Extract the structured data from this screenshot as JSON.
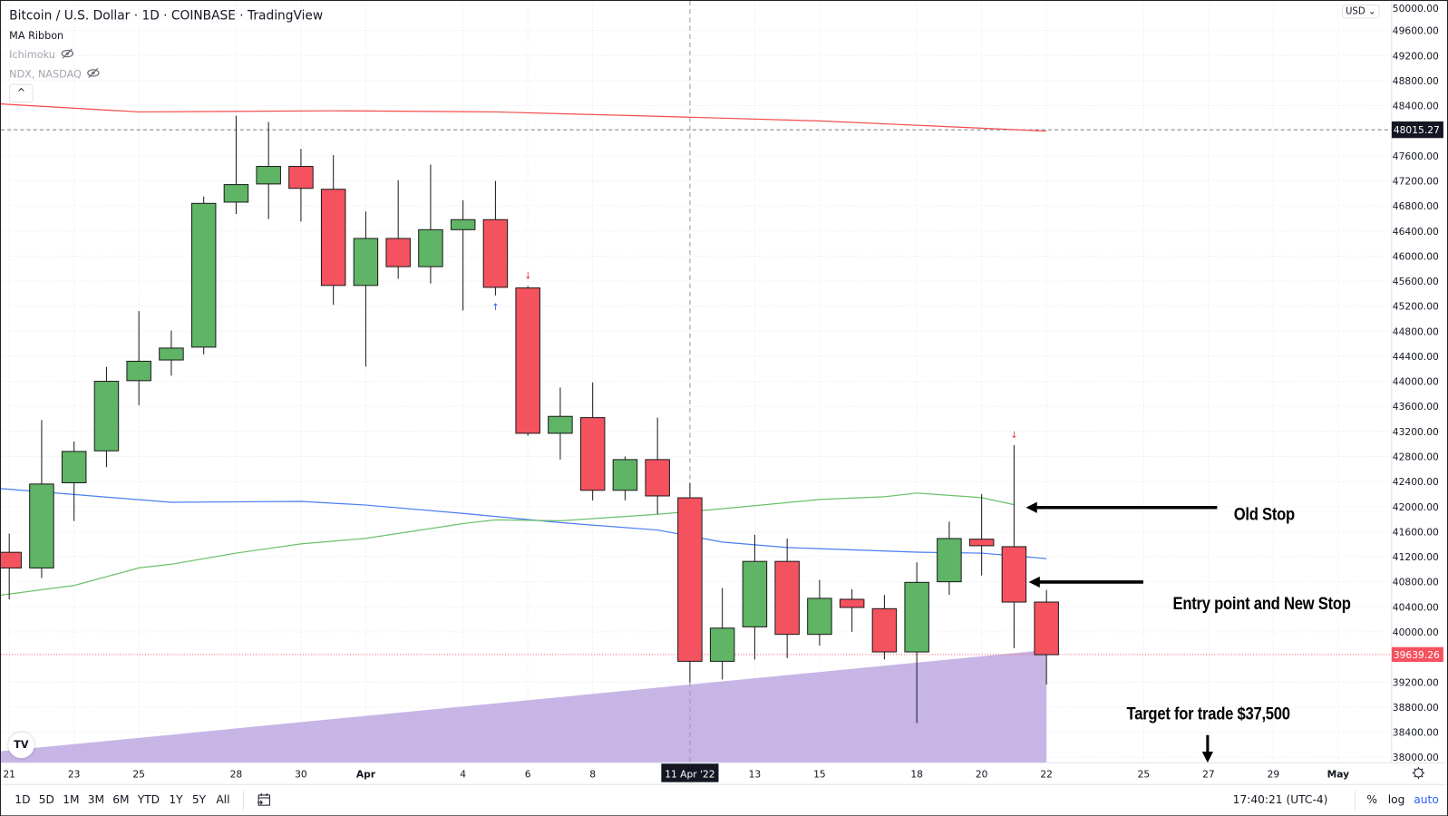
{
  "legend": {
    "title": "Bitcoin / U.S. Dollar · 1D · COINBASE · TradingView",
    "indicators": [
      "MA Ribbon",
      "Ichimoku",
      "NDX, NASDAQ"
    ]
  },
  "currency_selector": "USD ⌄",
  "toolbar": {
    "ranges": [
      "1D",
      "5D",
      "1M",
      "3M",
      "6M",
      "YTD",
      "1Y",
      "5Y",
      "All"
    ],
    "clock": "17:40:21 (UTC-4)",
    "percent": "%",
    "log": "log",
    "auto": "auto"
  },
  "colors": {
    "up": "#5fb466",
    "down": "#f5525f",
    "ma_long": "#f44b4b",
    "ma_mid": "#4a7cf5",
    "ma_short": "#6cc06a",
    "area": "#c7b5e6",
    "accent": "#2962ff"
  },
  "chart_data": {
    "type": "candlestick",
    "title": "Bitcoin / U.S. Dollar · 1D · COINBASE",
    "ylim": [
      38000,
      50000
    ],
    "y_ticks": [
      50000,
      49600,
      49200,
      48800,
      48400,
      47600,
      47200,
      46800,
      46400,
      46000,
      45600,
      45200,
      44800,
      44400,
      44000,
      43600,
      43200,
      42800,
      42400,
      42000,
      41600,
      41200,
      40800,
      40400,
      40000,
      39200,
      38800,
      38400,
      38000
    ],
    "x_ticks": [
      {
        "label": "21",
        "date": "2022-03-21"
      },
      {
        "label": "23",
        "date": "2022-03-23"
      },
      {
        "label": "25",
        "date": "2022-03-25"
      },
      {
        "label": "28",
        "date": "2022-03-28"
      },
      {
        "label": "30",
        "date": "2022-03-30"
      },
      {
        "label": "Apr",
        "date": "2022-04-01",
        "bold": true
      },
      {
        "label": "4",
        "date": "2022-04-04"
      },
      {
        "label": "6",
        "date": "2022-04-06"
      },
      {
        "label": "8",
        "date": "2022-04-08"
      },
      {
        "label": "13",
        "date": "2022-04-13"
      },
      {
        "label": "15",
        "date": "2022-04-15"
      },
      {
        "label": "18",
        "date": "2022-04-18"
      },
      {
        "label": "20",
        "date": "2022-04-20"
      },
      {
        "label": "22",
        "date": "2022-04-22"
      },
      {
        "label": "25",
        "date": "2022-04-25"
      },
      {
        "label": "27",
        "date": "2022-04-27"
      },
      {
        "label": "29",
        "date": "2022-04-29"
      },
      {
        "label": "May",
        "date": "2022-05-01",
        "bold": true
      }
    ],
    "crosshair": {
      "label": "11 Apr '22",
      "date": "2022-04-11"
    },
    "price_lines": [
      {
        "label": "48015.27",
        "value": 48015.27,
        "style": "dashed-gray"
      },
      {
        "label": "39639.26",
        "value": 39639.26,
        "style": "dotted-red"
      }
    ],
    "candles": [
      {
        "date": "2022-03-21",
        "o": 41270,
        "h": 41570,
        "l": 40520,
        "c": 41020
      },
      {
        "date": "2022-03-22",
        "o": 41020,
        "h": 43380,
        "l": 40860,
        "c": 42360
      },
      {
        "date": "2022-03-23",
        "o": 42380,
        "h": 43040,
        "l": 41770,
        "c": 42880
      },
      {
        "date": "2022-03-24",
        "o": 42890,
        "h": 44230,
        "l": 42630,
        "c": 44000
      },
      {
        "date": "2022-03-25",
        "o": 44010,
        "h": 45120,
        "l": 43620,
        "c": 44320
      },
      {
        "date": "2022-03-26",
        "o": 44340,
        "h": 44810,
        "l": 44090,
        "c": 44530
      },
      {
        "date": "2022-03-27",
        "o": 44545,
        "h": 46950,
        "l": 44430,
        "c": 46840
      },
      {
        "date": "2022-03-28",
        "o": 46860,
        "h": 48240,
        "l": 46670,
        "c": 47140
      },
      {
        "date": "2022-03-29",
        "o": 47150,
        "h": 48140,
        "l": 46590,
        "c": 47430
      },
      {
        "date": "2022-03-30",
        "o": 47430,
        "h": 47710,
        "l": 46550,
        "c": 47080
      },
      {
        "date": "2022-03-31",
        "o": 47065,
        "h": 47610,
        "l": 45220,
        "c": 45530
      },
      {
        "date": "2022-04-01",
        "o": 45530,
        "h": 46710,
        "l": 44235,
        "c": 46280
      },
      {
        "date": "2022-04-02",
        "o": 46280,
        "h": 47210,
        "l": 45635,
        "c": 45830
      },
      {
        "date": "2022-04-03",
        "o": 45830,
        "h": 47460,
        "l": 45560,
        "c": 46420
      },
      {
        "date": "2022-04-04",
        "o": 46420,
        "h": 46890,
        "l": 45130,
        "c": 46580
      },
      {
        "date": "2022-04-05",
        "o": 46580,
        "h": 47200,
        "l": 45370,
        "c": 45500
      },
      {
        "date": "2022-04-06",
        "o": 45490,
        "h": 45520,
        "l": 43130,
        "c": 43170
      },
      {
        "date": "2022-04-07",
        "o": 43170,
        "h": 43900,
        "l": 42750,
        "c": 43440
      },
      {
        "date": "2022-04-08",
        "o": 43420,
        "h": 43980,
        "l": 42100,
        "c": 42260
      },
      {
        "date": "2022-04-09",
        "o": 42260,
        "h": 42800,
        "l": 42100,
        "c": 42750
      },
      {
        "date": "2022-04-10",
        "o": 42750,
        "h": 43420,
        "l": 41880,
        "c": 42170
      },
      {
        "date": "2022-04-11",
        "o": 42140,
        "h": 42380,
        "l": 39190,
        "c": 39530
      },
      {
        "date": "2022-04-12",
        "o": 39530,
        "h": 40700,
        "l": 39240,
        "c": 40060
      },
      {
        "date": "2022-04-13",
        "o": 40080,
        "h": 41550,
        "l": 39560,
        "c": 41125
      },
      {
        "date": "2022-04-14",
        "o": 41125,
        "h": 41490,
        "l": 39580,
        "c": 39960
      },
      {
        "date": "2022-04-15",
        "o": 39960,
        "h": 40830,
        "l": 39780,
        "c": 40535
      },
      {
        "date": "2022-04-16",
        "o": 40520,
        "h": 40680,
        "l": 40000,
        "c": 40390
      },
      {
        "date": "2022-04-17",
        "o": 40370,
        "h": 40590,
        "l": 39560,
        "c": 39680
      },
      {
        "date": "2022-04-18",
        "o": 39680,
        "h": 41110,
        "l": 38545,
        "c": 40790
      },
      {
        "date": "2022-04-19",
        "o": 40800,
        "h": 41760,
        "l": 40590,
        "c": 41490
      },
      {
        "date": "2022-04-20",
        "o": 41480,
        "h": 42200,
        "l": 40900,
        "c": 41375
      },
      {
        "date": "2022-04-21",
        "o": 41360,
        "h": 42980,
        "l": 39740,
        "c": 40476
      },
      {
        "date": "2022-04-22",
        "o": 40476,
        "h": 40670,
        "l": 39160,
        "c": 39636
      }
    ],
    "moving_averages": [
      {
        "name": "MA long",
        "color": "#f44b4b",
        "points": [
          [
            "2022-03-20",
            48450
          ],
          [
            "2022-03-25",
            48300
          ],
          [
            "2022-03-31",
            48318
          ],
          [
            "2022-04-05",
            48300
          ],
          [
            "2022-04-10",
            48230
          ],
          [
            "2022-04-15",
            48156
          ],
          [
            "2022-04-22",
            47994
          ]
        ]
      },
      {
        "name": "MA mid",
        "color": "#4a7cf5",
        "points": [
          [
            "2022-03-20",
            42318
          ],
          [
            "2022-03-26",
            42068
          ],
          [
            "2022-03-30",
            42083
          ],
          [
            "2022-04-01",
            42024
          ],
          [
            "2022-04-04",
            41891
          ],
          [
            "2022-04-07",
            41744
          ],
          [
            "2022-04-10",
            41626
          ],
          [
            "2022-04-12",
            41434
          ],
          [
            "2022-04-14",
            41346
          ],
          [
            "2022-04-18",
            41272
          ],
          [
            "2022-04-20",
            41257
          ],
          [
            "2022-04-22",
            41169
          ]
        ]
      },
      {
        "name": "MA short",
        "color": "#6cc06a",
        "points": [
          [
            "2022-03-20",
            40535
          ],
          [
            "2022-03-23",
            40741
          ],
          [
            "2022-03-25",
            41021
          ],
          [
            "2022-03-26",
            41080
          ],
          [
            "2022-03-28",
            41257
          ],
          [
            "2022-03-30",
            41404
          ],
          [
            "2022-04-01",
            41493
          ],
          [
            "2022-04-04",
            41729
          ],
          [
            "2022-04-05",
            41788
          ],
          [
            "2022-04-07",
            41773
          ],
          [
            "2022-04-10",
            41876
          ],
          [
            "2022-04-12",
            41965
          ],
          [
            "2022-04-15",
            42113
          ],
          [
            "2022-04-17",
            42157
          ],
          [
            "2022-04-18",
            42216
          ],
          [
            "2022-04-20",
            42142
          ],
          [
            "2022-04-21",
            42030
          ]
        ]
      }
    ],
    "support_area": {
      "start": [
        "2022-03-20",
        38058
      ],
      "end": [
        "2022-04-22",
        39710
      ]
    },
    "signals": [
      {
        "date": "2022-04-06",
        "type": "down",
        "glyph": "↓"
      },
      {
        "date": "2022-04-05",
        "type": "up",
        "glyph": "↑"
      },
      {
        "date": "2022-04-21",
        "type": "down",
        "glyph": "↓"
      }
    ],
    "annotations": [
      {
        "text": "Old Stop",
        "price": 42000
      },
      {
        "text": "Entry point and New Stop",
        "price": 40810
      },
      {
        "text": "Target for trade $37,500",
        "date": "2022-04-27"
      }
    ]
  }
}
